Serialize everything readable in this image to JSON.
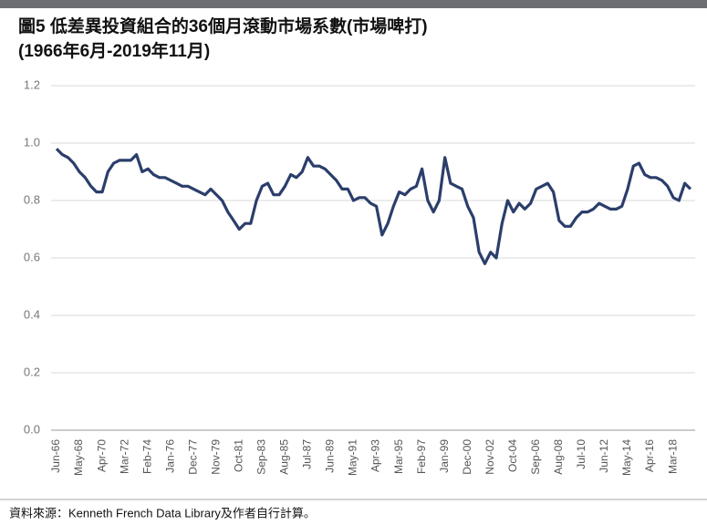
{
  "chart_data": {
    "type": "line",
    "title": "圖5 低差異投資組合的36個月滾動市場系數(市場啤打)",
    "subtitle": "(1966年6月-2019年11月)",
    "source": "資料來源：Kenneth French Data Library及作者自行計算。",
    "categories": [
      "Jun-66",
      null,
      null,
      null,
      "May-68",
      null,
      null,
      null,
      "Apr-70",
      null,
      null,
      null,
      "Mar-72",
      null,
      null,
      null,
      "Feb-74",
      null,
      null,
      null,
      "Jan-76",
      null,
      null,
      null,
      "Dec-77",
      null,
      null,
      null,
      "Nov-79",
      null,
      null,
      null,
      "Oct-81",
      null,
      null,
      null,
      "Sep-83",
      null,
      null,
      null,
      "Aug-85",
      null,
      null,
      null,
      "Jul-87",
      null,
      null,
      null,
      "Jun-89",
      null,
      null,
      null,
      "May-91",
      null,
      null,
      null,
      "Apr-93",
      null,
      null,
      null,
      "Mar-95",
      null,
      null,
      null,
      "Feb-97",
      null,
      null,
      null,
      "Jan-99",
      null,
      null,
      null,
      "Dec-00",
      null,
      null,
      null,
      "Nov-02",
      null,
      null,
      null,
      "Oct-04",
      null,
      null,
      null,
      "Sep-06",
      null,
      null,
      null,
      "Aug-08",
      null,
      null,
      null,
      "Jul-10",
      null,
      null,
      null,
      "Jun-12",
      null,
      null,
      null,
      "May-14",
      null,
      null,
      null,
      "Apr-16",
      null,
      null,
      null,
      "Mar-18",
      null,
      null,
      null
    ],
    "series": [
      {
        "color": "#2b3e6b",
        "values": [
          0.98,
          0.96,
          0.95,
          0.93,
          0.9,
          0.88,
          0.85,
          0.83,
          0.83,
          0.9,
          0.93,
          0.94,
          0.94,
          0.94,
          0.96,
          0.9,
          0.91,
          0.89,
          0.88,
          0.88,
          0.87,
          0.86,
          0.85,
          0.85,
          0.84,
          0.83,
          0.82,
          0.84,
          0.82,
          0.8,
          0.76,
          0.73,
          0.7,
          0.72,
          0.72,
          0.8,
          0.85,
          0.86,
          0.82,
          0.82,
          0.85,
          0.89,
          0.88,
          0.9,
          0.95,
          0.92,
          0.92,
          0.91,
          0.89,
          0.87,
          0.84,
          0.84,
          0.8,
          0.81,
          0.81,
          0.79,
          0.78,
          0.68,
          0.72,
          0.78,
          0.83,
          0.82,
          0.84,
          0.85,
          0.91,
          0.8,
          0.76,
          0.8,
          0.95,
          0.86,
          0.85,
          0.84,
          0.78,
          0.74,
          0.62,
          0.58,
          0.62,
          0.6,
          0.72,
          0.8,
          0.76,
          0.79,
          0.77,
          0.79,
          0.84,
          0.85,
          0.86,
          0.83,
          0.73,
          0.71,
          0.71,
          0.74,
          0.76,
          0.76,
          0.77,
          0.79,
          0.78,
          0.77,
          0.77,
          0.78,
          0.84,
          0.92,
          0.93,
          0.89,
          0.88,
          0.88,
          0.87,
          0.85,
          0.81,
          0.8,
          0.86,
          0.84
        ]
      }
    ],
    "ylim": [
      0,
      1.2
    ],
    "yticks": [
      {
        "value": 0,
        "label": "0.0"
      },
      0.2,
      0.4,
      0.6,
      0.8,
      {
        "value": 1,
        "label": "1.0"
      },
      1.2
    ],
    "grid": true
  }
}
